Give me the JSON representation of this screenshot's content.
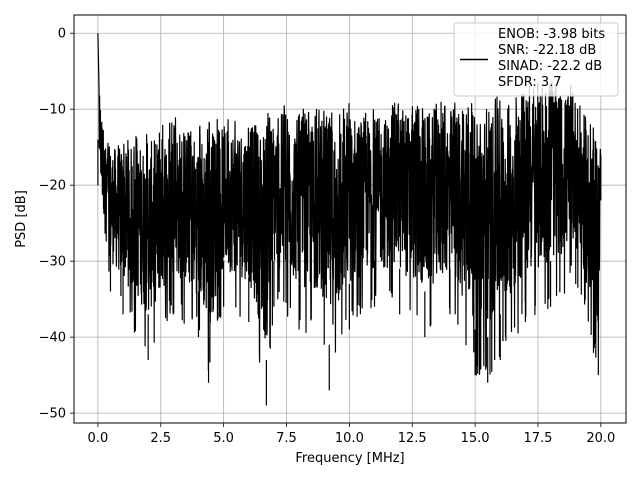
{
  "chart_data": {
    "type": "line",
    "xlabel": "Frequency [MHz]",
    "ylabel": "PSD [dB]",
    "xlim": [
      -0.95,
      21.0
    ],
    "ylim": [
      -51.3,
      2.4
    ],
    "xticks": [
      0.0,
      2.5,
      5.0,
      7.5,
      10.0,
      12.5,
      15.0,
      17.5,
      20.0
    ],
    "xtick_labels": [
      "0.0",
      "2.5",
      "5.0",
      "7.5",
      "10.0",
      "12.5",
      "15.0",
      "17.5",
      "20.0"
    ],
    "yticks": [
      0,
      -10,
      -20,
      -30,
      -40,
      -50
    ],
    "ytick_labels": [
      "0",
      "−10",
      "−20",
      "−30",
      "−40",
      "−50"
    ],
    "grid": true,
    "legend_position": "top-right",
    "legend_lines": [
      "ENOB: -3.98 bits",
      "SNR: -22.18 dB",
      "SINAD: -22.2 dB",
      "SFDR: 3.7"
    ],
    "series": [
      {
        "color": "#000000",
        "note_points": "sampled envelope of dense noise spectrum",
        "x_start": 0.0,
        "x_end": 20.0,
        "peak": {
          "x": 0.02,
          "y": 0.0
        },
        "upper_envelope": [
          [
            0.0,
            0.0
          ],
          [
            0.1,
            -8
          ],
          [
            0.3,
            -14
          ],
          [
            1.0,
            -14
          ],
          [
            2.0,
            -13
          ],
          [
            2.5,
            -12
          ],
          [
            3.0,
            -11
          ],
          [
            4.0,
            -12
          ],
          [
            5.0,
            -11
          ],
          [
            6.0,
            -11
          ],
          [
            7.0,
            -10
          ],
          [
            7.5,
            -9
          ],
          [
            8.0,
            -10
          ],
          [
            9.0,
            -10
          ],
          [
            10.0,
            -9
          ],
          [
            11.0,
            -10
          ],
          [
            12.0,
            -9
          ],
          [
            13.0,
            -9
          ],
          [
            14.0,
            -9
          ],
          [
            15.0,
            -9
          ],
          [
            16.0,
            -8
          ],
          [
            17.0,
            -7
          ],
          [
            18.0,
            -6
          ],
          [
            19.0,
            -7
          ],
          [
            20.0,
            -14
          ]
        ],
        "lower_envelope": [
          [
            0.0,
            -20
          ],
          [
            0.5,
            -34
          ],
          [
            1.0,
            -37
          ],
          [
            2.0,
            -43
          ],
          [
            3.0,
            -37
          ],
          [
            4.0,
            -40
          ],
          [
            4.4,
            -46
          ],
          [
            5.0,
            -36
          ],
          [
            6.0,
            -38
          ],
          [
            6.7,
            -49
          ],
          [
            7.0,
            -36
          ],
          [
            8.0,
            -39
          ],
          [
            9.0,
            -41
          ],
          [
            9.2,
            -47
          ],
          [
            10.0,
            -39
          ],
          [
            11.0,
            -36
          ],
          [
            12.0,
            -37
          ],
          [
            13.0,
            -40
          ],
          [
            14.0,
            -37
          ],
          [
            15.0,
            -45
          ],
          [
            15.5,
            -46
          ],
          [
            16.0,
            -43
          ],
          [
            17.0,
            -38
          ],
          [
            18.0,
            -36
          ],
          [
            19.0,
            -33
          ],
          [
            19.9,
            -45
          ],
          [
            20.0,
            -22
          ]
        ],
        "typical_range": [
          -30,
          -12
        ]
      }
    ]
  }
}
